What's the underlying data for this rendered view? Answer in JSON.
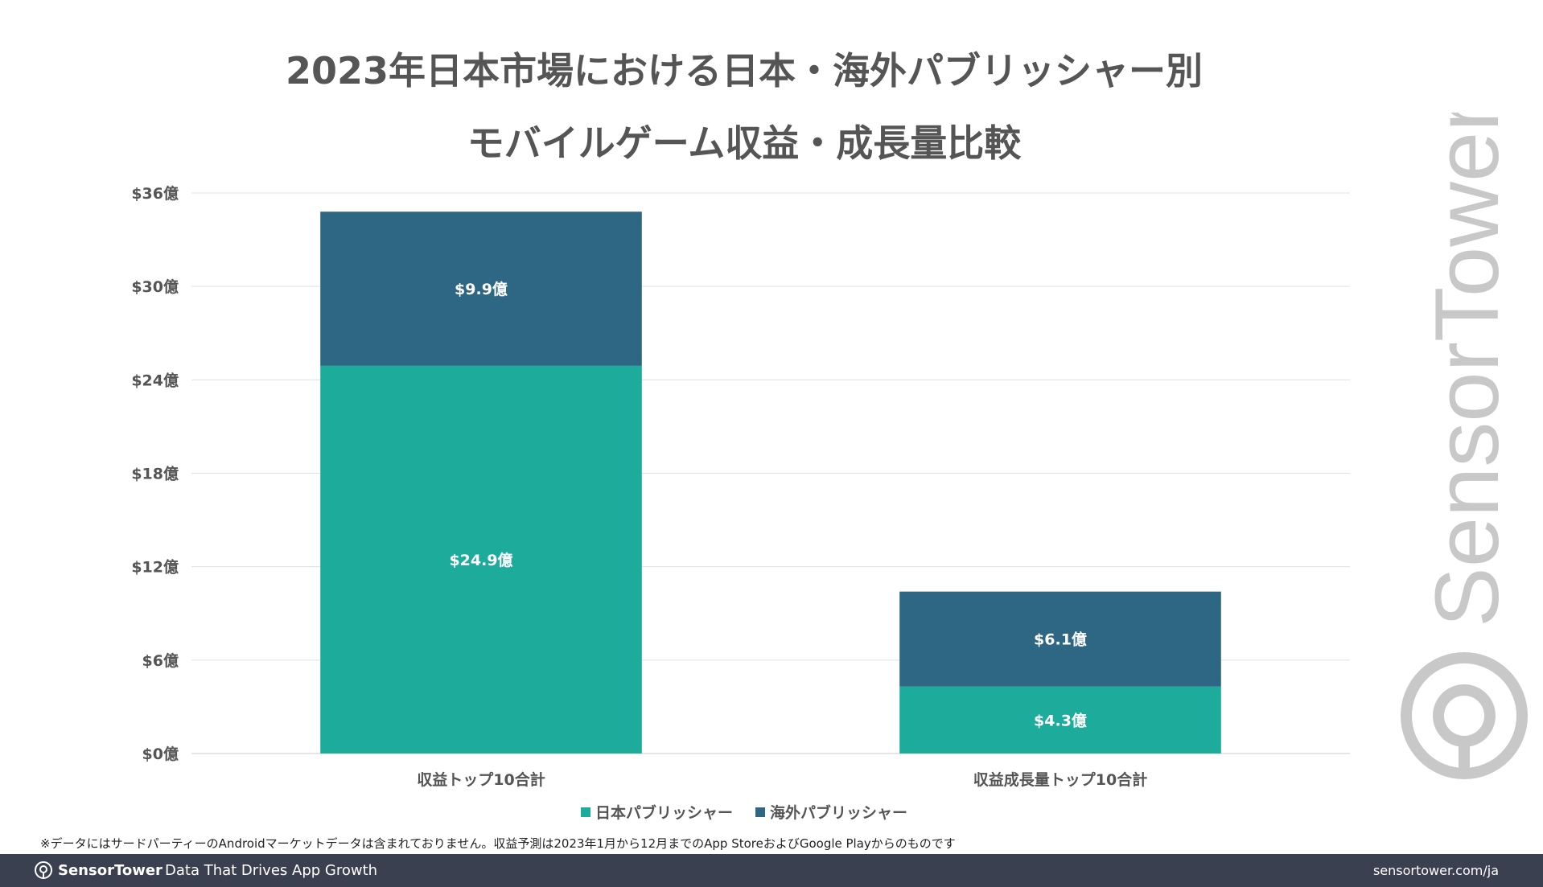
{
  "title_line1": "2023年日本市場における日本・海外パブリッシャー別",
  "title_line2": "モバイルゲーム収益・成長量比較",
  "chart_data": {
    "type": "bar",
    "stacked": true,
    "categories": [
      "収益トップ10合計",
      "収益成長量トップ10合計"
    ],
    "series": [
      {
        "name": "日本パブリッシャー",
        "color": "#1dab9c",
        "values": [
          24.9,
          4.3
        ],
        "labels": [
          "$24.9億",
          "$4.3億"
        ]
      },
      {
        "name": "海外パブリッシャー",
        "color": "#2e6784",
        "values": [
          9.9,
          6.1
        ],
        "labels": [
          "$9.9億",
          "$6.1億"
        ]
      }
    ],
    "yticks": [
      "$0億",
      "$6億",
      "$12億",
      "$18億",
      "$24億",
      "$30億",
      "$36億"
    ],
    "ylim": [
      0,
      36
    ],
    "grid": true,
    "legend": "bottom"
  },
  "footnote": "※データにはサードパーティーのAndroidマーケットデータは含まれておりません。収益予測は2023年1月から12月までのApp StoreおよびGoogle Playからのものです",
  "footer": {
    "logo_text": "SensorTower",
    "tagline": "Data That Drives App Growth",
    "url": "sensortower.com/ja"
  },
  "watermark_text": "SensorTower"
}
